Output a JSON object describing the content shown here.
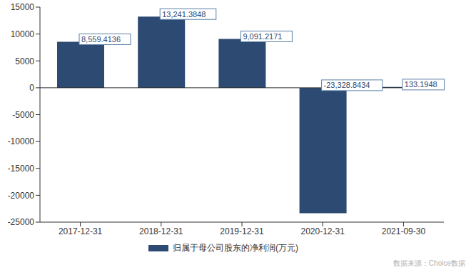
{
  "chart_data": {
    "type": "bar",
    "categories": [
      "2017-12-31",
      "2018-12-31",
      "2019-12-31",
      "2020-12-31",
      "2021-09-30"
    ],
    "series": [
      {
        "name": "归属于母公司股东的净利润(万元)",
        "color": "#2d4a72",
        "values": [
          8559.4136,
          13241.3848,
          9091.2171,
          -23328.8434,
          133.1948
        ],
        "value_labels": [
          "8,559.4136",
          "13,241.3848",
          "9,091.2171",
          "-23,328.8434",
          "133.1948"
        ]
      }
    ],
    "ylim": [
      -25000,
      15000
    ],
    "yticks": [
      -25000,
      -20000,
      -15000,
      -10000,
      -5000,
      0,
      5000,
      10000,
      15000
    ],
    "grid": false,
    "data_labels": true,
    "legend": "bottom",
    "annotations": [
      "数据来源：Choice数据"
    ]
  }
}
